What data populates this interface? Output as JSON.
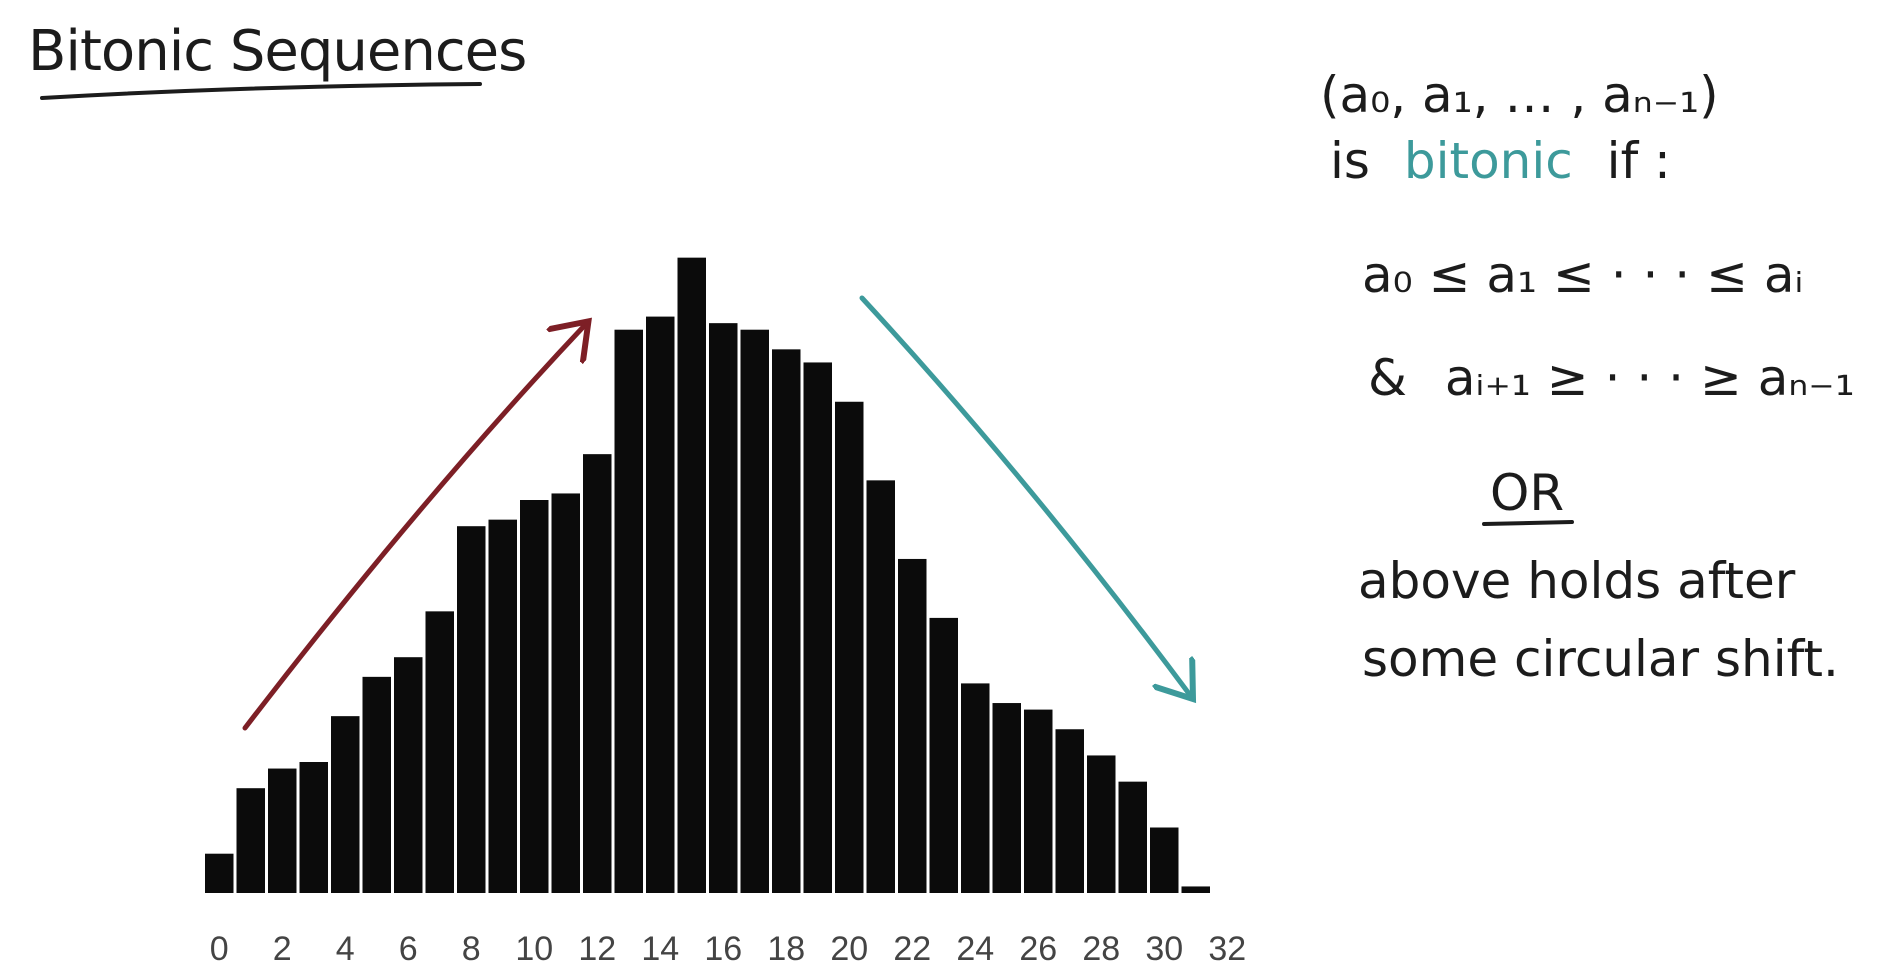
{
  "title": "Bitonic Sequences",
  "colors": {
    "bar": "#0b0b0b",
    "up_arrow": "#7d1f26",
    "down_arrow": "#3d9a9b",
    "accent_word": "#3d9a9b",
    "ink": "#1c1c1c"
  },
  "definition": {
    "sequence": "(a₀, a₁, … , aₙ₋₁)",
    "is_prefix": "is",
    "is_word": "bitonic",
    "is_suffix": "if :",
    "cond1": "a₀ ≤ a₁ ≤ · · · ≤ aᵢ",
    "cond2_and": "&",
    "cond2": "aᵢ₊₁ ≥ · · · ≥ aₙ₋₁",
    "or": "OR",
    "alt_line1": "above holds after",
    "alt_line2": "some circular shift."
  },
  "chart_data": {
    "type": "bar",
    "x": [
      0,
      1,
      2,
      3,
      4,
      5,
      6,
      7,
      8,
      9,
      10,
      11,
      12,
      13,
      14,
      15,
      16,
      17,
      18,
      19,
      20,
      21,
      22,
      23,
      24,
      25,
      26,
      27,
      28,
      29,
      30,
      31
    ],
    "values": [
      6,
      16,
      19,
      20,
      27,
      33,
      36,
      43,
      56,
      57,
      60,
      61,
      67,
      86,
      88,
      97,
      87,
      86,
      83,
      81,
      75,
      63,
      51,
      42,
      32,
      29,
      28,
      25,
      21,
      17,
      10,
      1
    ],
    "xticks": [
      "0",
      "2",
      "4",
      "6",
      "8",
      "10",
      "12",
      "14",
      "16",
      "18",
      "20",
      "22",
      "24",
      "26",
      "28",
      "30",
      "32"
    ],
    "xlim": [
      0,
      32
    ],
    "ylim": [
      0,
      100
    ],
    "grid": false,
    "legend": "none",
    "annotations": [
      "increasing-arrow",
      "decreasing-arrow"
    ]
  }
}
